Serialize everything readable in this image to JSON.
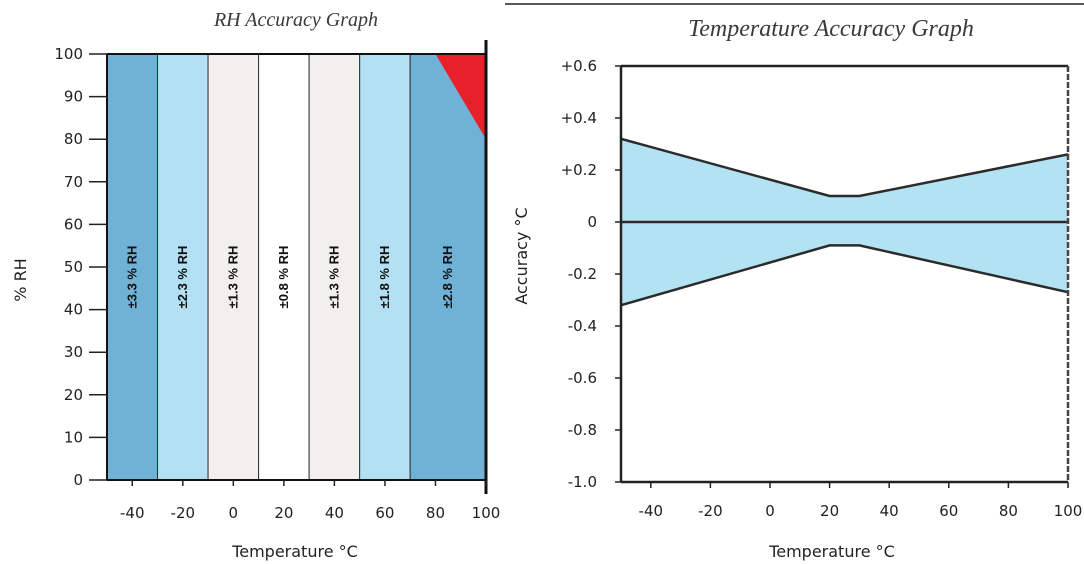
{
  "chart_data": [
    {
      "type": "area",
      "title": "RH Accuracy Graph",
      "xlabel": "Temperature °C",
      "ylabel": "% RH",
      "xlim": [
        -50,
        100
      ],
      "ylim": [
        0,
        100
      ],
      "x_ticks": [
        "-40",
        "-20",
        "0",
        "20",
        "40",
        "60",
        "80",
        "100"
      ],
      "y_ticks": [
        "0",
        "10",
        "20",
        "30",
        "40",
        "50",
        "60",
        "70",
        "80",
        "90",
        "100"
      ],
      "bands": [
        {
          "x_from": -50,
          "x_to": -30,
          "label": "±3.3 % RH",
          "color": "#6fb2d6"
        },
        {
          "x_from": -30,
          "x_to": -10,
          "label": "±2.3 % RH",
          "color": "#b3e0f2"
        },
        {
          "x_from": -10,
          "x_to": 10,
          "label": "±1.3 % RH",
          "color": "#f2f0ee"
        },
        {
          "x_from": 10,
          "x_to": 30,
          "label": "±0.8 % RH",
          "color": "#ffffff"
        },
        {
          "x_from": 30,
          "x_to": 50,
          "label": "±1.3 % RH",
          "color": "#f2f0ee"
        },
        {
          "x_from": 50,
          "x_to": 70,
          "label": "±1.8 % RH",
          "color": "#b3e0f2"
        },
        {
          "x_from": 70,
          "x_to": 100,
          "label": "±2.8 % RH",
          "color": "#6fb2d6"
        }
      ],
      "out_of_spec_region": {
        "color": "#e8202a",
        "points": [
          [
            80,
            100
          ],
          [
            100,
            100
          ],
          [
            100,
            80
          ]
        ]
      },
      "grid": false
    },
    {
      "type": "area",
      "title": "Temperature Accuracy Graph",
      "xlabel": "Temperature °C",
      "ylabel": "Accuracy °C",
      "xlim": [
        -50,
        100
      ],
      "ylim": [
        -1.0,
        0.6
      ],
      "x_ticks": [
        "-40",
        "-20",
        "0",
        "20",
        "40",
        "60",
        "80",
        "100"
      ],
      "y_ticks": [
        "-1.0",
        "-0.8",
        "-0.6",
        "-0.4",
        "-0.2",
        "0",
        "+0.2",
        "+0.4",
        "+0.6"
      ],
      "fill_color": "#b3e3f3",
      "upper": {
        "x": [
          -50,
          20,
          30,
          100
        ],
        "y": [
          0.32,
          0.1,
          0.1,
          0.26
        ]
      },
      "lower": {
        "x": [
          -50,
          20,
          30,
          100
        ],
        "y": [
          -0.32,
          -0.09,
          -0.09,
          -0.27
        ]
      },
      "grid": false
    }
  ]
}
